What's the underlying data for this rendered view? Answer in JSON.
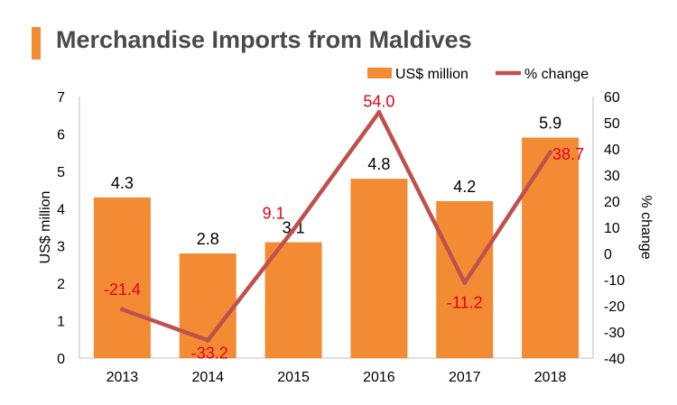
{
  "title": "Merchandise Imports from Maldives",
  "colors": {
    "bar": "#f38b35",
    "line": "#c0504d",
    "title_accent": "#f38b35",
    "line_label": "#e8001c",
    "text": "#000000"
  },
  "chart_data": {
    "type": "bar",
    "categories": [
      "2013",
      "2014",
      "2015",
      "2016",
      "2017",
      "2018"
    ],
    "series": [
      {
        "name": "US$ million",
        "type": "bar",
        "axis": "left",
        "values": [
          4.3,
          2.8,
          3.1,
          4.8,
          4.2,
          5.9
        ],
        "labels": [
          "4.3",
          "2.8",
          "3.1",
          "4.8",
          "4.2",
          "5.9"
        ]
      },
      {
        "name": "% change",
        "type": "line",
        "axis": "right",
        "values": [
          -21.4,
          -33.2,
          9.1,
          54.0,
          -11.2,
          38.7
        ],
        "labels": [
          "-21.4",
          "-33.2",
          "9.1",
          "54.0",
          "-11.2",
          "38.7"
        ]
      }
    ],
    "ylabel": "US$ million",
    "y2label": "% change",
    "ylim": [
      0,
      7
    ],
    "y2lim": [
      -40,
      60
    ],
    "yticks": [
      "0",
      "1",
      "2",
      "3",
      "4",
      "5",
      "6",
      "7"
    ],
    "y2ticks": [
      "-40",
      "-30",
      "-20",
      "-10",
      "0",
      "10",
      "20",
      "30",
      "40",
      "50",
      "60"
    ],
    "grid": false,
    "legend": "top-right"
  }
}
